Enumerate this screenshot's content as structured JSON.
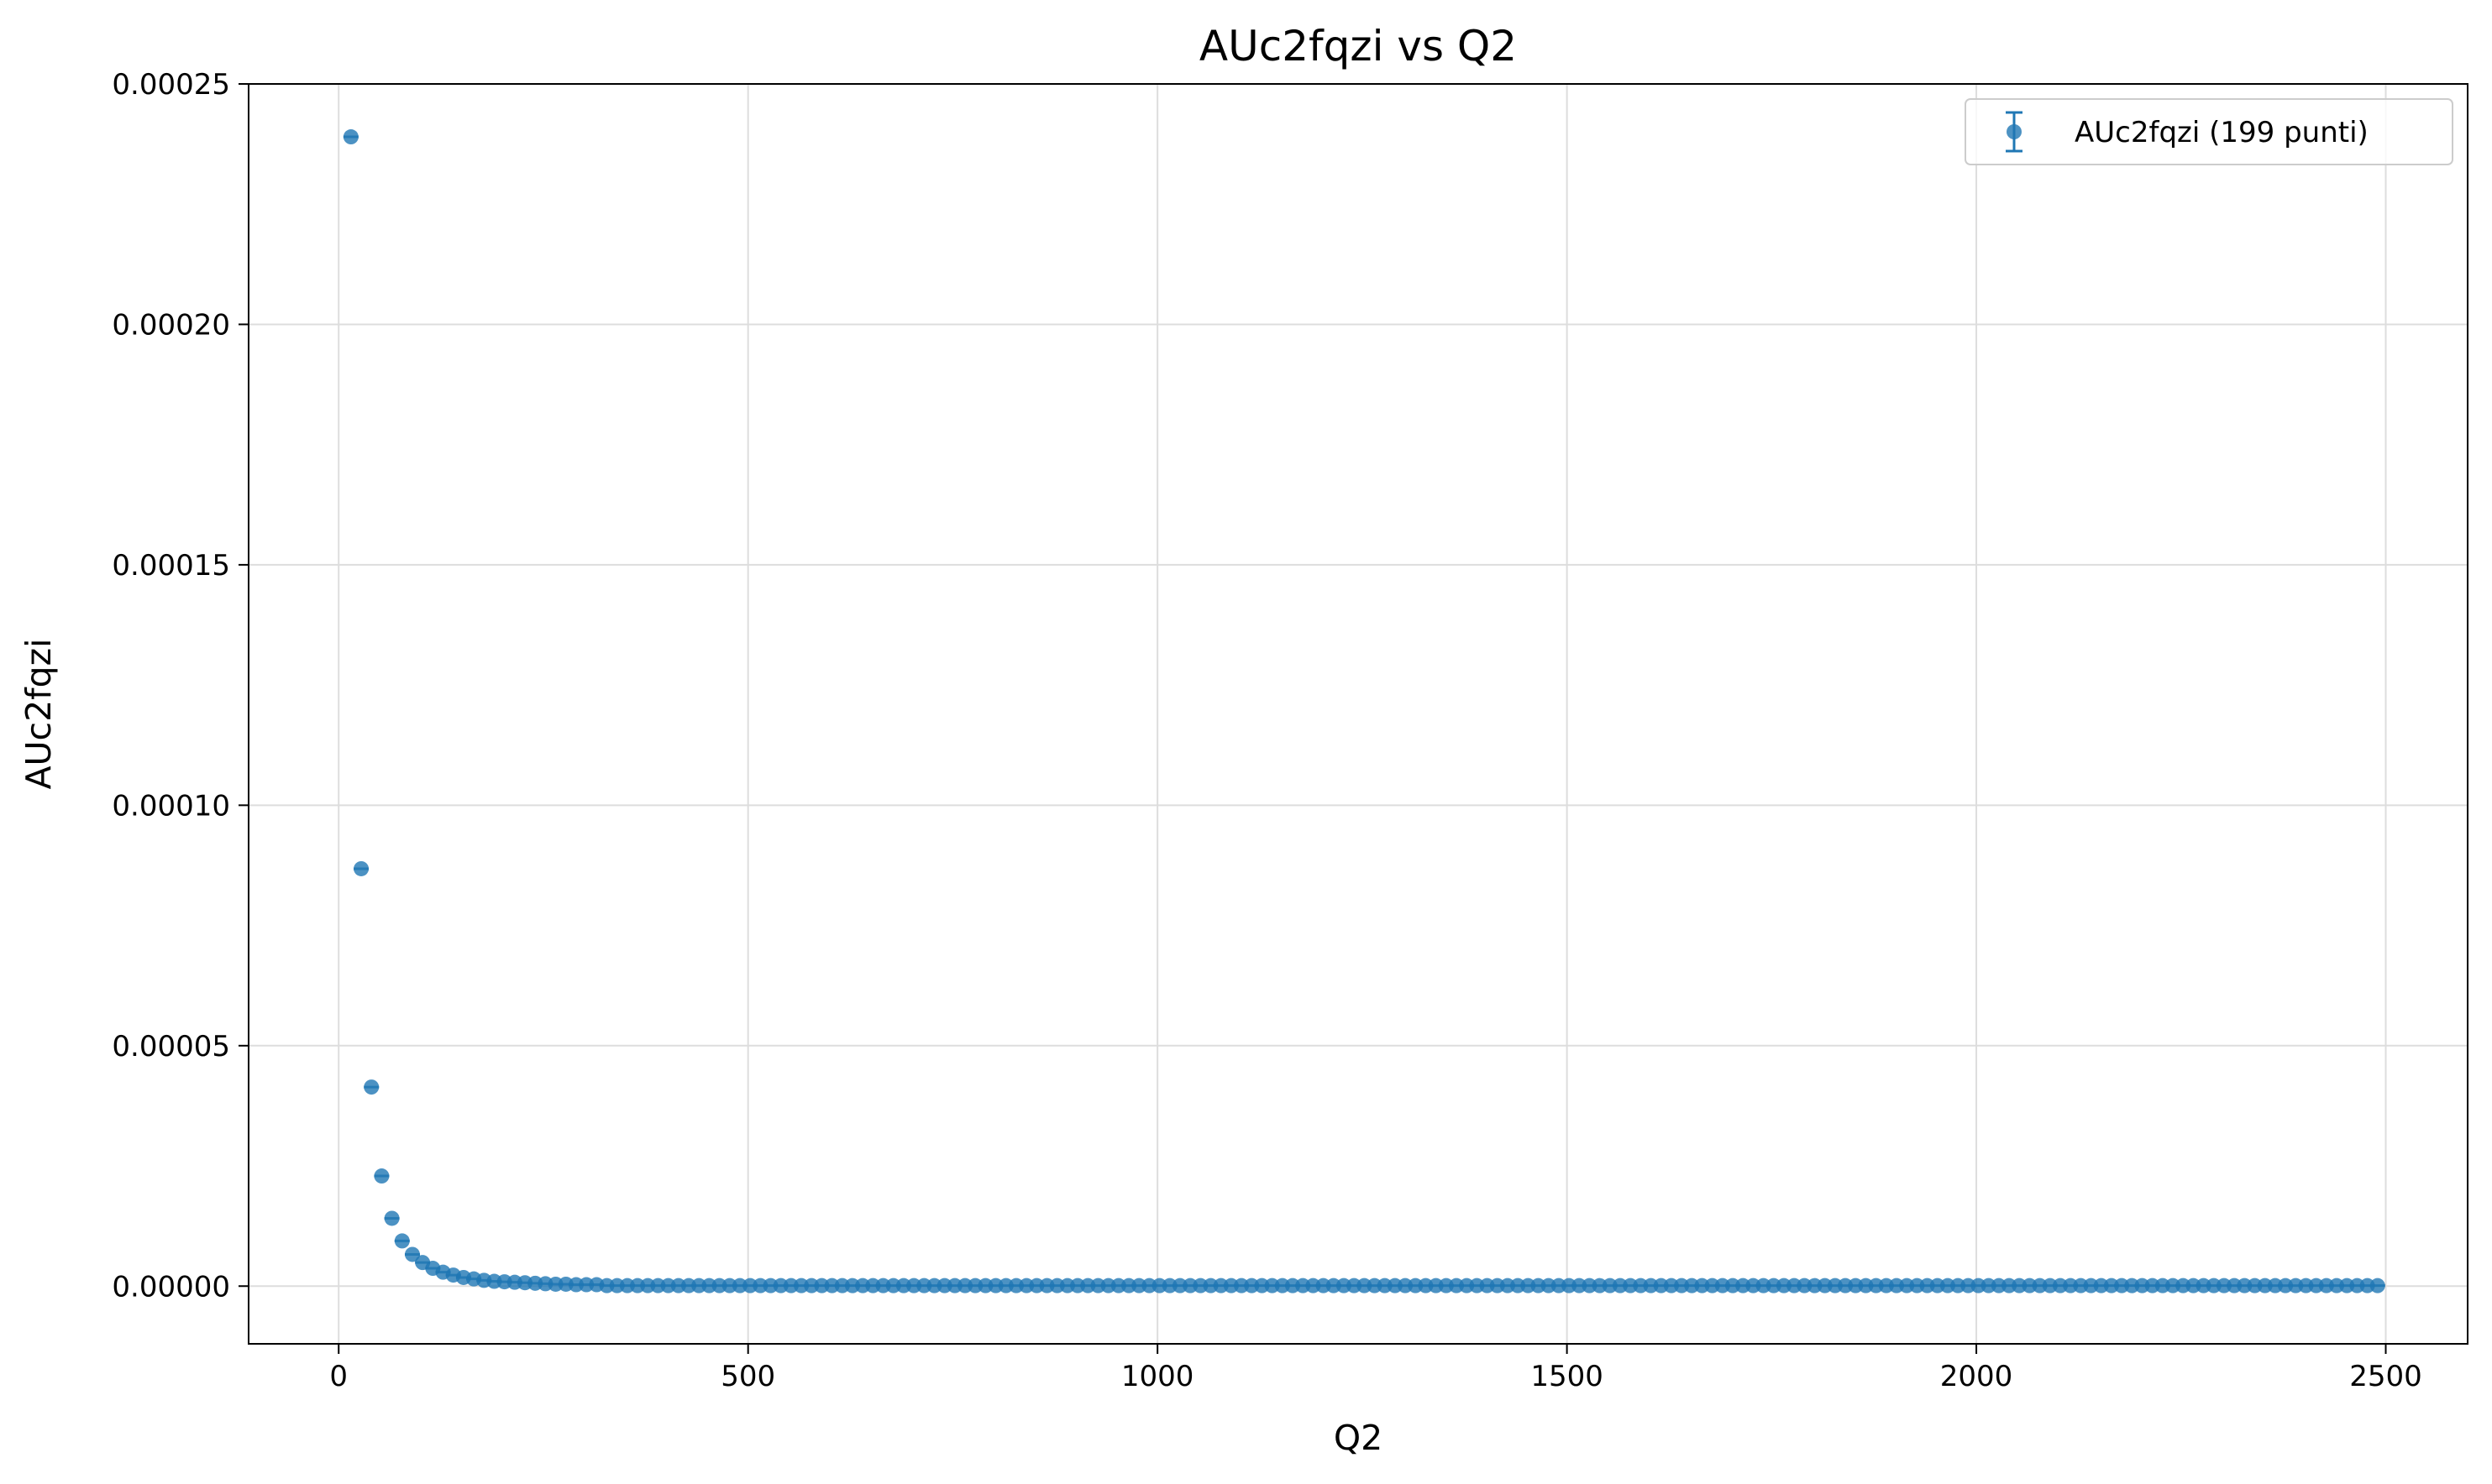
{
  "chart_data": {
    "type": "scatter",
    "title": "AUc2fqzi vs Q2",
    "xlabel": "Q2",
    "ylabel": "AUc2fqzi",
    "xlim": [
      -110,
      2600
    ],
    "ylim": [
      -1.2e-05,
      0.00025
    ],
    "x_ticks": [
      0,
      500,
      1000,
      1500,
      2000,
      2500
    ],
    "x_tick_labels": [
      "0",
      "500",
      "1000",
      "1500",
      "2000",
      "2500"
    ],
    "y_ticks": [
      0,
      5e-05,
      0.0001,
      0.00015,
      0.0002,
      0.00025
    ],
    "y_tick_labels": [
      "0.00000",
      "0.00005",
      "0.00010",
      "0.00015",
      "0.00020",
      "0.00025"
    ],
    "grid": true,
    "legend_position": "top-right",
    "series": [
      {
        "name": "AUc2fqzi (199 punti)",
        "color": "#1f77b4",
        "marker": "circle-with-errorbar",
        "x_start": 15,
        "x_step": 12.5,
        "count": 199,
        "leading_values": [
          0.000239,
          8.68e-05,
          4.14e-05,
          2.29e-05,
          1.41e-05,
          9.4e-06,
          6.6e-06,
          4.9e-06,
          3.7e-06,
          2.9e-06,
          2.3e-06,
          1.8e-06,
          1.5e-06,
          1.2e-06,
          1e-06,
          9e-07,
          8e-07,
          7e-07,
          6e-07,
          5e-07,
          4e-07,
          4e-07,
          3e-07,
          3e-07,
          3e-07
        ],
        "trailing_value": 1e-07
      }
    ]
  }
}
